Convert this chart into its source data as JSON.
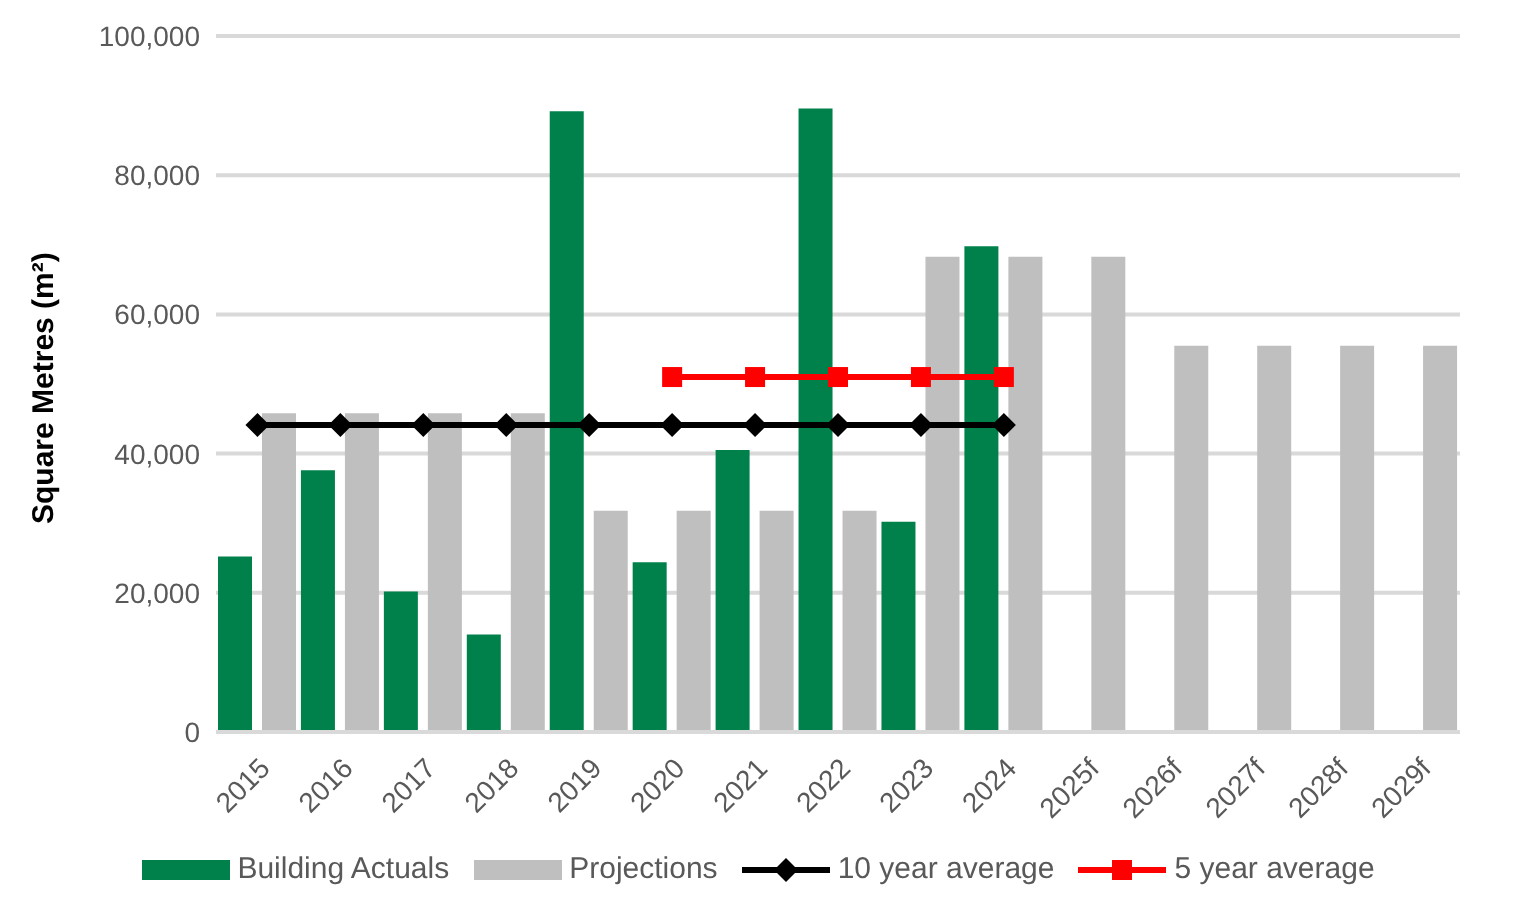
{
  "chart_data": {
    "type": "bar",
    "ylabel": "Square Metres (m²)",
    "categories": [
      "2015",
      "2016",
      "2017",
      "2018",
      "2019",
      "2020",
      "2021",
      "2022",
      "2023",
      "2024",
      "2025f",
      "2026f",
      "2027f",
      "2028f",
      "2029f"
    ],
    "series": [
      {
        "name": "Building Actuals",
        "color": "#00804a",
        "values": [
          25200,
          37600,
          20200,
          14000,
          89200,
          24400,
          40500,
          89600,
          30200,
          69800,
          null,
          null,
          null,
          null,
          null
        ]
      },
      {
        "name": "Projections",
        "color": "#bfbfbf",
        "values": [
          45800,
          45800,
          45800,
          45800,
          31800,
          31800,
          31800,
          31800,
          68300,
          68300,
          68300,
          55500,
          55500,
          55500,
          55500
        ]
      },
      {
        "name": "10 year average",
        "type": "line",
        "color": "#000000",
        "marker": "diamond",
        "values": [
          44100,
          44100,
          44100,
          44100,
          44100,
          44100,
          44100,
          44100,
          44100,
          44100,
          null,
          null,
          null,
          null,
          null
        ]
      },
      {
        "name": "5 year average",
        "type": "line",
        "color": "#ff0000",
        "marker": "square",
        "values": [
          null,
          null,
          null,
          null,
          null,
          51000,
          51000,
          51000,
          51000,
          51000,
          null,
          null,
          null,
          null,
          null
        ]
      }
    ],
    "ylim": [
      0,
      100000
    ],
    "yticks": [
      0,
      {
        "value": 20000,
        "label": "20,000"
      },
      {
        "value": 40000,
        "label": "40,000"
      },
      {
        "value": 60000,
        "label": "60,000"
      },
      {
        "value": 80000,
        "label": "80,000"
      },
      {
        "value": 100000,
        "label": "100,000"
      }
    ],
    "grid": "y",
    "legend": "bottom"
  }
}
